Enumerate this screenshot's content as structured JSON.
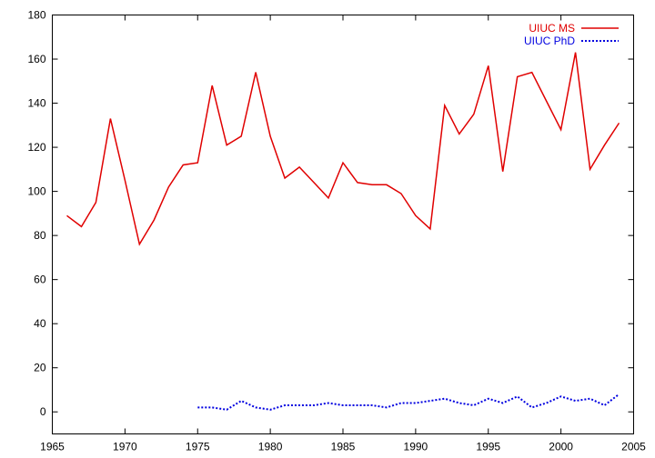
{
  "chart_data": {
    "type": "line",
    "title": "",
    "xlabel": "",
    "ylabel": "",
    "xlim": [
      1965,
      2005
    ],
    "ylim": [
      -10,
      180
    ],
    "xticks": [
      1965,
      1970,
      1975,
      1980,
      1985,
      1990,
      1995,
      2000,
      2005
    ],
    "yticks": [
      0,
      20,
      40,
      60,
      80,
      100,
      120,
      140,
      160,
      180
    ],
    "grid": false,
    "legend_position": "top-right",
    "series": [
      {
        "name": "UIUC MS",
        "color": "#e00000",
        "style": "solid",
        "x": [
          1966,
          1967,
          1968,
          1969,
          1970,
          1971,
          1972,
          1973,
          1974,
          1975,
          1976,
          1977,
          1978,
          1979,
          1980,
          1981,
          1982,
          1983,
          1984,
          1985,
          1986,
          1987,
          1988,
          1989,
          1990,
          1991,
          1992,
          1993,
          1994,
          1995,
          1996,
          1997,
          1998,
          1999,
          2000,
          2001,
          2002,
          2003,
          2004
        ],
        "values": [
          89,
          84,
          95,
          133,
          105,
          76,
          87,
          102,
          112,
          113,
          148,
          121,
          125,
          154,
          125,
          106,
          111,
          104,
          97,
          113,
          104,
          103,
          103,
          99,
          89,
          83,
          139,
          126,
          135,
          157,
          109,
          152,
          154,
          141,
          128,
          163,
          110,
          121,
          131
        ]
      },
      {
        "name": "UIUC PhD",
        "color": "#0000e0",
        "style": "dotted",
        "x": [
          1975,
          1976,
          1977,
          1978,
          1979,
          1980,
          1981,
          1982,
          1983,
          1984,
          1985,
          1986,
          1987,
          1988,
          1989,
          1990,
          1991,
          1992,
          1993,
          1994,
          1995,
          1996,
          1997,
          1998,
          1999,
          2000,
          2001,
          2002,
          2003,
          2004
        ],
        "values": [
          2,
          2,
          1,
          5,
          2,
          1,
          3,
          3,
          3,
          4,
          3,
          3,
          3,
          2,
          4,
          4,
          5,
          6,
          4,
          3,
          6,
          4,
          7,
          2,
          4,
          7,
          5,
          6,
          3,
          8
        ]
      }
    ]
  }
}
